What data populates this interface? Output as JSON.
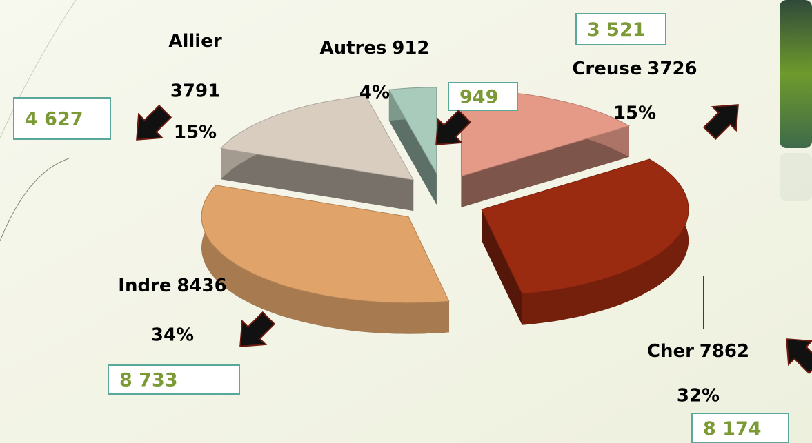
{
  "chart_data": {
    "type": "pie",
    "categories": [
      "Creuse",
      "Cher",
      "Indre",
      "Allier",
      "Autres"
    ],
    "values": [
      3726,
      7862,
      8436,
      3791,
      912
    ],
    "colors": [
      "#e59a88",
      "#9a2a10",
      "#e0a369",
      "#d9cdc0",
      "#a9cbbb"
    ],
    "percentages": [
      15,
      32,
      34,
      15,
      4
    ],
    "percentage_labels": [
      "15%",
      "32%",
      "34%",
      "15%",
      "4%"
    ],
    "comparison": {
      "values": [
        3521,
        8174,
        8733,
        4627,
        949
      ],
      "value_labels": [
        "3 521",
        "8 174",
        "8 733",
        "4 627",
        "949"
      ]
    }
  }
}
